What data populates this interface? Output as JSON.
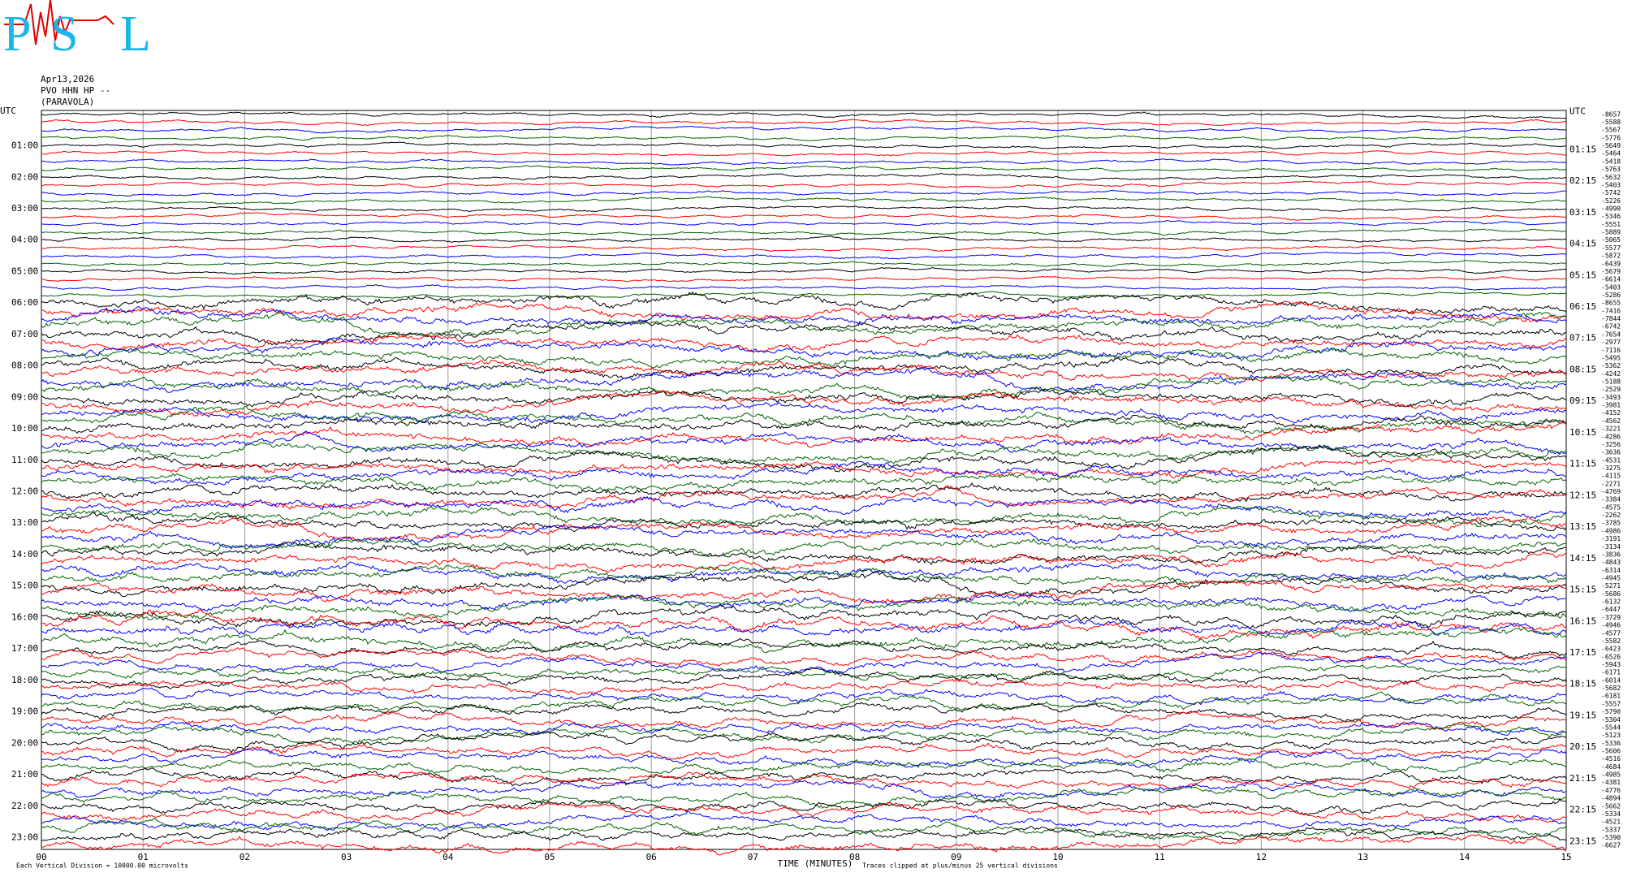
{
  "logo": {
    "letters": [
      "P",
      "S",
      "L"
    ]
  },
  "header": {
    "date": "Apr13,2026",
    "station": "PVO HHN HP --",
    "location": "(PARAVOLA)"
  },
  "left_labels": [
    "UTC",
    "01:00",
    "02:00",
    "03:00",
    "04:00",
    "05:00",
    "06:00",
    "07:00",
    "08:00",
    "09:00",
    "10:00",
    "11:00",
    "12:00",
    "13:00",
    "14:00",
    "15:00",
    "16:00",
    "17:00",
    "18:00",
    "19:00",
    "20:00",
    "21:00",
    "22:00",
    "23:00"
  ],
  "right_labels": [
    "UTC",
    "01:15",
    "02:15",
    "03:15",
    "04:15",
    "05:15",
    "06:15",
    "07:15",
    "08:15",
    "09:15",
    "10:15",
    "11:15",
    "12:15",
    "13:15",
    "14:15",
    "15:15",
    "16:15",
    "17:15",
    "18:15",
    "19:15",
    "20:15",
    "21:15",
    "22:15",
    "23:15"
  ],
  "offsets": [
    "-8657",
    "-5588",
    "-5567",
    "-5776",
    "-5649",
    "-5464",
    "-5418",
    "-5763",
    "-5632",
    "-5403",
    "-5742",
    "-5226",
    "-4990",
    "-5346",
    "-5551",
    "-5889",
    "-5065",
    "-5577",
    "-5872",
    "-6439",
    "-5679",
    "-6614",
    "-5403",
    "-5286",
    "-8655",
    "-7416",
    "-7844",
    "-6742",
    "-7654",
    "-2977",
    "-7116",
    "-5495",
    "-5362",
    "-4242",
    "-5188",
    "-2529",
    "-3493",
    "-3981",
    "-4152",
    "-4562",
    "-3221",
    "-4286",
    "-3256",
    "-3636",
    "-4531",
    "-3275",
    "-4115",
    "-2271",
    "-4769",
    "-3384",
    "-4575",
    "-2262",
    "-3785",
    "-4986",
    "-3191",
    "-3134",
    "-3836",
    "-4843",
    "-6314",
    "-4945",
    "-5271",
    "-5686",
    "-6132",
    "-6447",
    "-3729",
    "-4946",
    "-4577",
    "-5582",
    "-6423",
    "-6526",
    "-5943",
    "-6171",
    "-6014",
    "-5682",
    "-6181",
    "-5557",
    "-5790",
    "-5304",
    "-5544",
    "-5123",
    "-5336",
    "-5606",
    "-4516",
    "-4684",
    "-4985",
    "-4381",
    "-4776",
    "-4894",
    "-5662",
    "-5334",
    "-4521",
    "-5337",
    "-5390",
    "-6627"
  ],
  "x_ticks": [
    "00",
    "01",
    "02",
    "03",
    "04",
    "05",
    "06",
    "07",
    "08",
    "09",
    "10",
    "11",
    "12",
    "13",
    "14",
    "15"
  ],
  "x_label": "TIME (MINUTES)",
  "footer_left": "Each Vertical Division = 10000.00 microvolts",
  "footer_right": "Traces clipped at plus/minus 25 vertical divisions",
  "trace_colors": [
    "#000000",
    "#ff0000",
    "#0000ff",
    "#006400"
  ]
}
